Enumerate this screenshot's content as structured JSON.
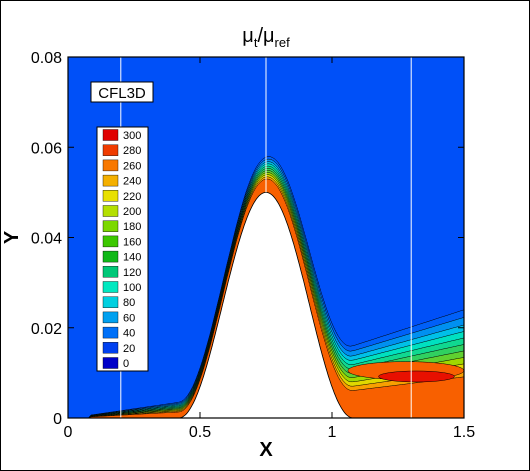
{
  "chart_data": {
    "type": "heatmap",
    "title_base": "μ",
    "title_sub1": "t",
    "title_sep": "/μ",
    "title_sub2": "ref",
    "xlabel": "X",
    "ylabel": "Y",
    "xlim": [
      0,
      1.5
    ],
    "ylim": [
      0,
      0.08
    ],
    "x_ticks": [
      0,
      0.5,
      1,
      1.5
    ],
    "x_tick_labels": [
      "0",
      "0.5",
      "1",
      "1.5"
    ],
    "y_ticks": [
      0,
      0.02,
      0.04,
      0.06,
      0.08
    ],
    "y_tick_labels": [
      "0",
      "0.02",
      "0.04",
      "0.06",
      "0.08"
    ],
    "solver_label": "CFL3D",
    "legend": {
      "placement": "left",
      "levels": [
        300,
        280,
        260,
        240,
        220,
        200,
        180,
        160,
        140,
        120,
        100,
        80,
        60,
        40,
        20,
        0
      ],
      "labels": [
        "300",
        "280",
        "260",
        "240",
        "220",
        "200",
        "180",
        "160",
        "140",
        "120",
        "100",
        "80",
        "60",
        "40",
        "20",
        "0"
      ],
      "colors": [
        "#e00000",
        "#f03c00",
        "#f87800",
        "#f4b000",
        "#e8e000",
        "#b4e000",
        "#7cd800",
        "#3cc800",
        "#10b818",
        "#00c878",
        "#00e8c0",
        "#00d0e0",
        "#00a0f0",
        "#0070f8",
        "#0040f0",
        "#0000c8"
      ]
    },
    "background_color": "#0050f8",
    "bump": {
      "center_x": 0.75,
      "peak_y": 0.05,
      "extent_x": [
        0.42,
        1.08
      ]
    },
    "vertical_lines_x": [
      0.2,
      0.75,
      1.3
    ]
  }
}
